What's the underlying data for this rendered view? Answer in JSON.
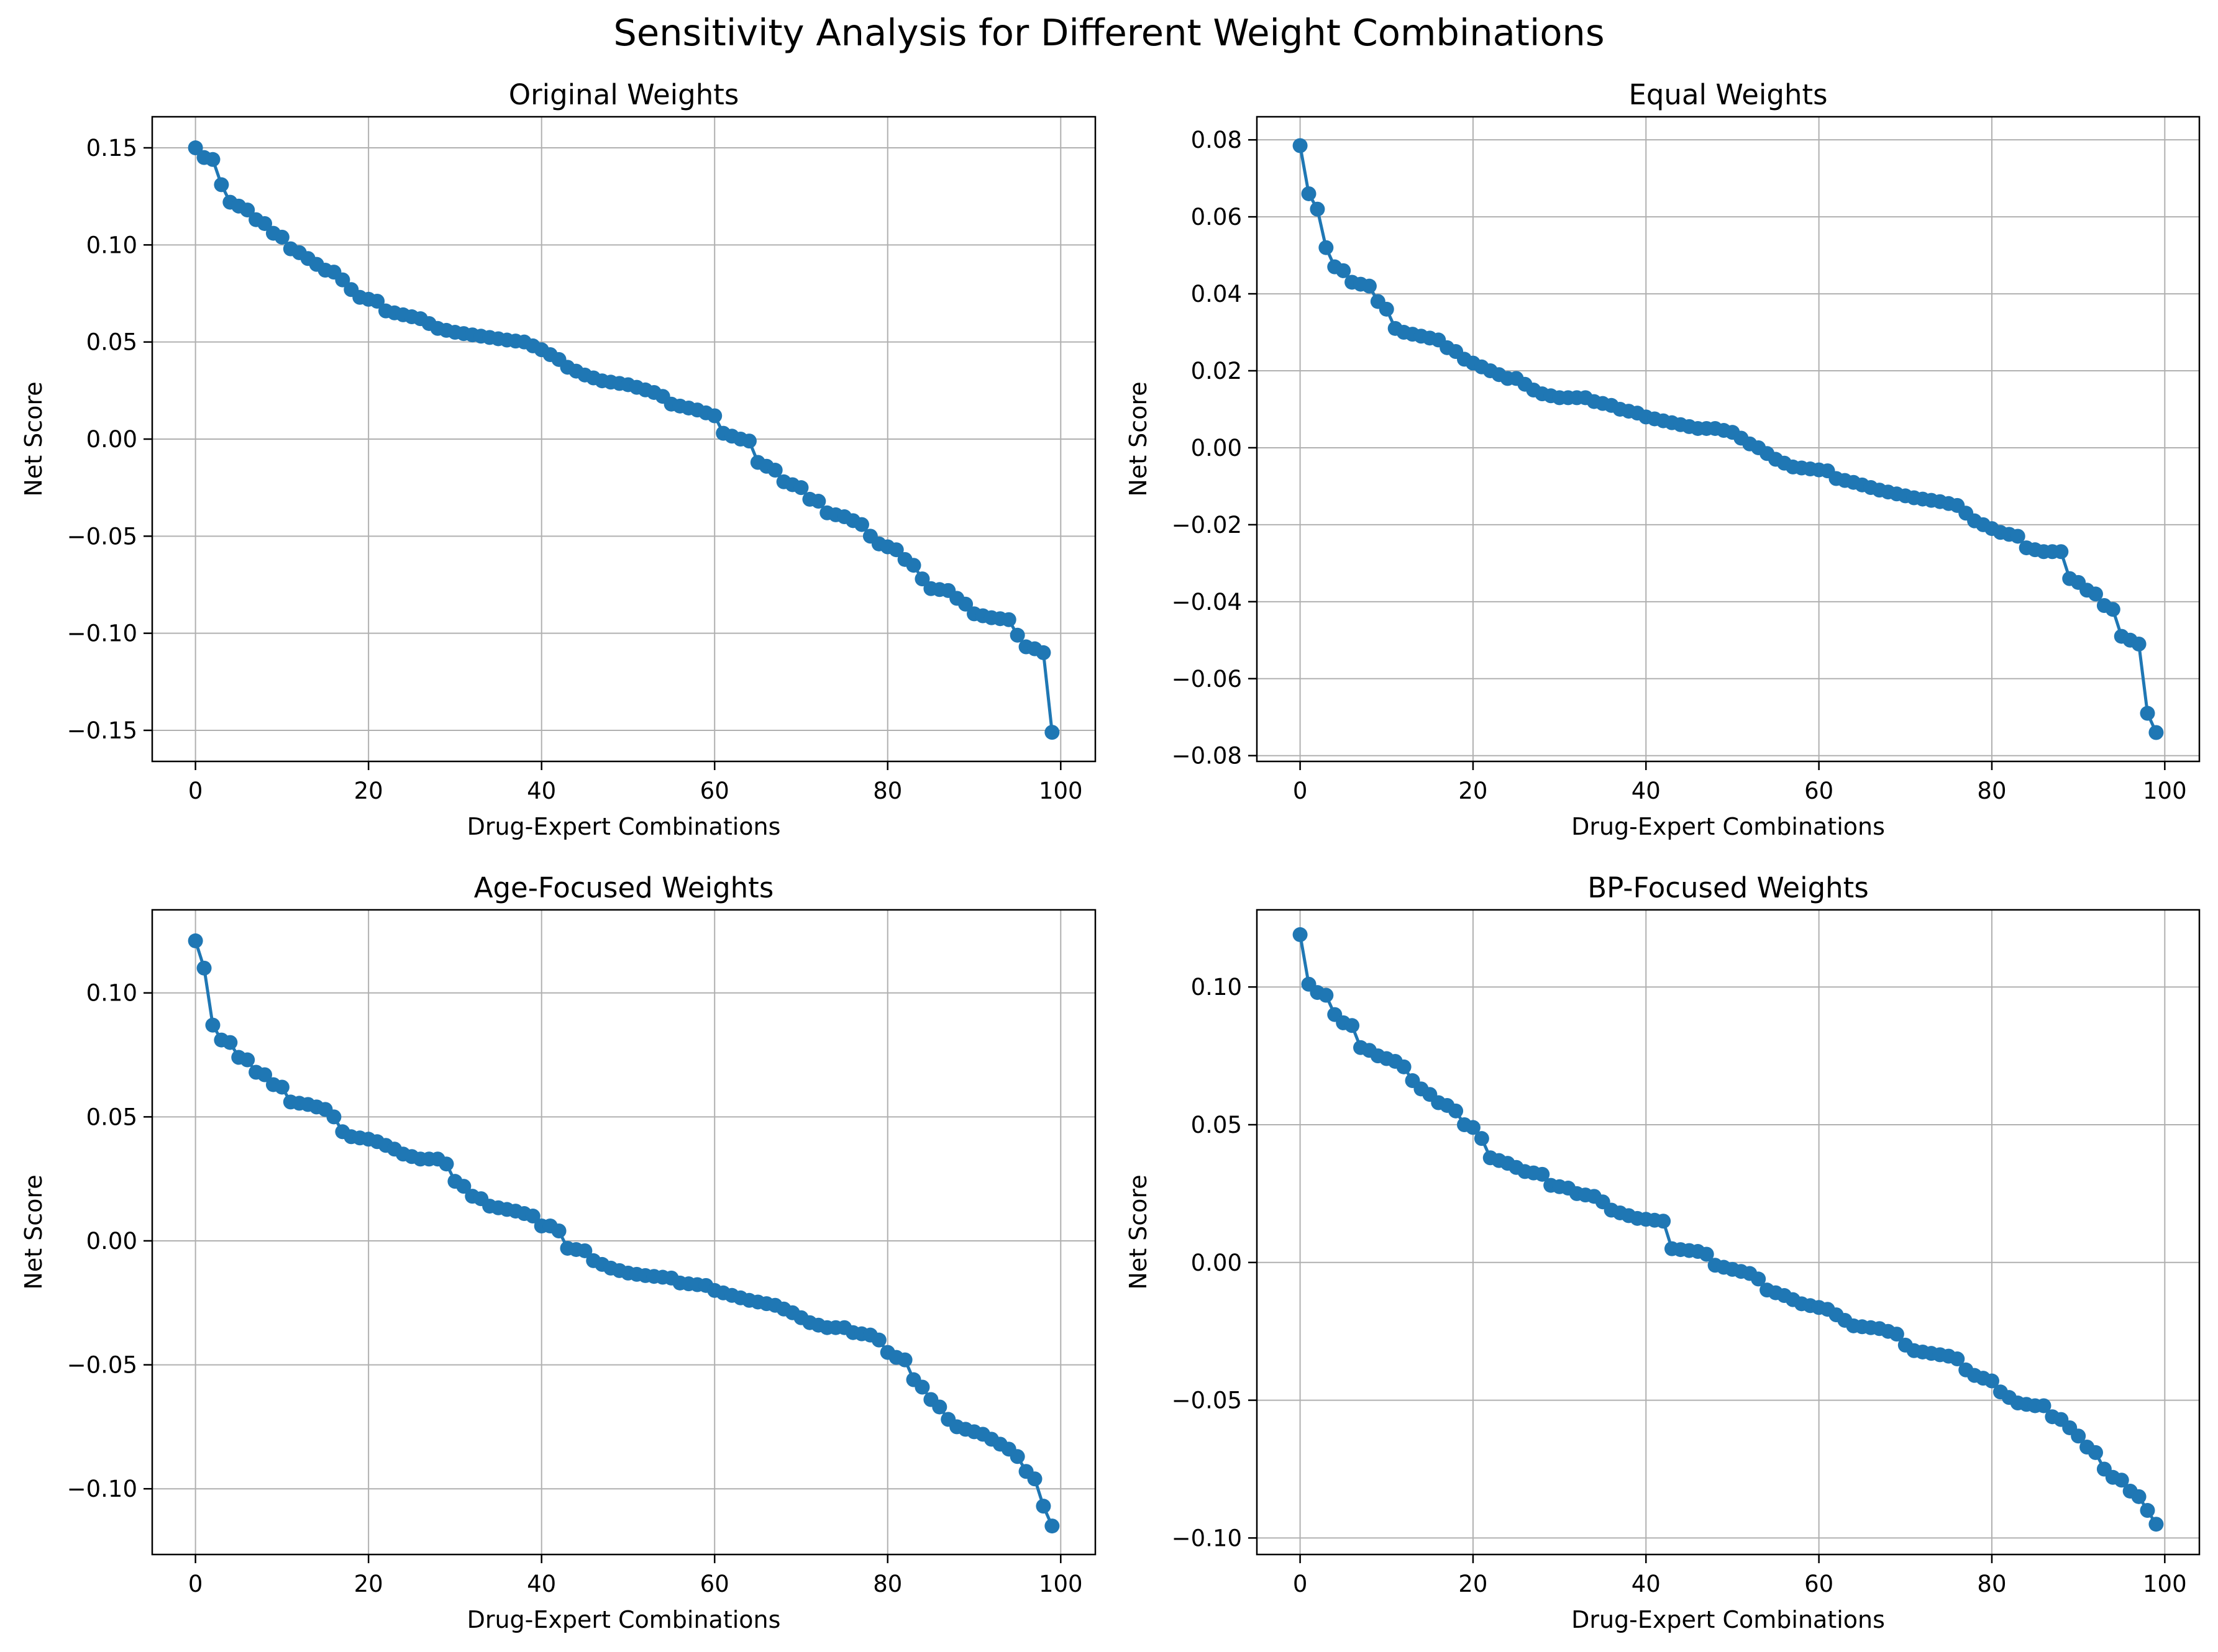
{
  "figure": {
    "suptitle": "Sensitivity Analysis for Different Weight Combinations"
  },
  "chart_data": [
    {
      "type": "line",
      "title": "Original Weights",
      "xlabel": "Drug-Expert Combinations",
      "ylabel": "Net Score",
      "xlim": [
        -5,
        104
      ],
      "ylim": [
        -0.166,
        0.166
      ],
      "xticks": [
        0,
        20,
        40,
        60,
        80,
        100
      ],
      "yticks": [
        -0.15,
        -0.1,
        -0.05,
        0.0,
        0.05,
        0.1,
        0.15
      ],
      "ytick_labels": [
        "−0.15",
        "−0.10",
        "−0.05",
        "0.00",
        "0.05",
        "0.10",
        "0.15"
      ],
      "grid": true,
      "color": "#1f77b4",
      "marker": "circle",
      "anchors": [
        [
          0,
          0.15
        ],
        [
          1,
          0.145
        ],
        [
          2,
          0.144
        ],
        [
          3,
          0.131
        ],
        [
          4,
          0.122
        ],
        [
          5,
          0.12
        ],
        [
          6,
          0.118
        ],
        [
          7,
          0.113
        ],
        [
          8,
          0.111
        ],
        [
          9,
          0.106
        ],
        [
          10,
          0.104
        ],
        [
          11,
          0.098
        ],
        [
          12,
          0.096
        ],
        [
          13,
          0.093
        ],
        [
          14,
          0.09
        ],
        [
          15,
          0.087
        ],
        [
          16,
          0.086
        ],
        [
          17,
          0.082
        ],
        [
          18,
          0.077
        ],
        [
          19,
          0.073
        ],
        [
          20,
          0.072
        ],
        [
          21,
          0.071
        ],
        [
          22,
          0.066
        ],
        [
          24,
          0.064
        ],
        [
          26,
          0.062
        ],
        [
          28,
          0.057
        ],
        [
          30,
          0.055
        ],
        [
          33,
          0.053
        ],
        [
          36,
          0.051
        ],
        [
          38,
          0.05
        ],
        [
          40,
          0.046
        ],
        [
          42,
          0.041
        ],
        [
          43,
          0.037
        ],
        [
          45,
          0.033
        ],
        [
          47,
          0.03
        ],
        [
          50,
          0.028
        ],
        [
          53,
          0.024
        ],
        [
          54,
          0.022
        ],
        [
          55,
          0.018
        ],
        [
          58,
          0.015
        ],
        [
          60,
          0.012
        ],
        [
          61,
          0.003
        ],
        [
          63,
          0.0
        ],
        [
          64,
          -0.001
        ],
        [
          65,
          -0.012
        ],
        [
          67,
          -0.016
        ],
        [
          68,
          -0.022
        ],
        [
          70,
          -0.025
        ],
        [
          71,
          -0.031
        ],
        [
          72,
          -0.032
        ],
        [
          73,
          -0.038
        ],
        [
          75,
          -0.04
        ],
        [
          77,
          -0.044
        ],
        [
          78,
          -0.05
        ],
        [
          79,
          -0.054
        ],
        [
          81,
          -0.057
        ],
        [
          82,
          -0.062
        ],
        [
          83,
          -0.065
        ],
        [
          84,
          -0.072
        ],
        [
          85,
          -0.077
        ],
        [
          87,
          -0.078
        ],
        [
          88,
          -0.082
        ],
        [
          89,
          -0.085
        ],
        [
          90,
          -0.09
        ],
        [
          92,
          -0.092
        ],
        [
          94,
          -0.093
        ],
        [
          95,
          -0.101
        ],
        [
          96,
          -0.107
        ],
        [
          97,
          -0.108
        ],
        [
          98,
          -0.11
        ],
        [
          99,
          -0.151
        ]
      ]
    },
    {
      "type": "line",
      "title": "Equal Weights",
      "xlabel": "Drug-Expert Combinations",
      "ylabel": "Net Score",
      "xlim": [
        -5,
        104
      ],
      "ylim": [
        -0.0815,
        0.086
      ],
      "xticks": [
        0,
        20,
        40,
        60,
        80,
        100
      ],
      "yticks": [
        -0.08,
        -0.06,
        -0.04,
        -0.02,
        0.0,
        0.02,
        0.04,
        0.06,
        0.08
      ],
      "ytick_labels": [
        "−0.08",
        "−0.06",
        "−0.04",
        "−0.02",
        "0.00",
        "0.02",
        "0.04",
        "0.06",
        "0.08"
      ],
      "grid": true,
      "color": "#1f77b4",
      "marker": "circle",
      "anchors": [
        [
          0,
          0.0785
        ],
        [
          1,
          0.066
        ],
        [
          2,
          0.062
        ],
        [
          3,
          0.052
        ],
        [
          4,
          0.047
        ],
        [
          5,
          0.046
        ],
        [
          6,
          0.043
        ],
        [
          8,
          0.042
        ],
        [
          9,
          0.038
        ],
        [
          10,
          0.036
        ],
        [
          11,
          0.031
        ],
        [
          12,
          0.03
        ],
        [
          14,
          0.029
        ],
        [
          16,
          0.028
        ],
        [
          17,
          0.026
        ],
        [
          18,
          0.025
        ],
        [
          19,
          0.023
        ],
        [
          20,
          0.022
        ],
        [
          21,
          0.021
        ],
        [
          22,
          0.02
        ],
        [
          24,
          0.018
        ],
        [
          25,
          0.018
        ],
        [
          27,
          0.015
        ],
        [
          28,
          0.014
        ],
        [
          30,
          0.013
        ],
        [
          33,
          0.013
        ],
        [
          34,
          0.012
        ],
        [
          36,
          0.011
        ],
        [
          37,
          0.01
        ],
        [
          39,
          0.009
        ],
        [
          40,
          0.008
        ],
        [
          42,
          0.007
        ],
        [
          44,
          0.006
        ],
        [
          46,
          0.005
        ],
        [
          48,
          0.005
        ],
        [
          50,
          0.004
        ],
        [
          52,
          0.001
        ],
        [
          53,
          0.0
        ],
        [
          55,
          -0.003
        ],
        [
          57,
          -0.005
        ],
        [
          61,
          -0.006
        ],
        [
          62,
          -0.008
        ],
        [
          64,
          -0.009
        ],
        [
          67,
          -0.011
        ],
        [
          69,
          -0.012
        ],
        [
          71,
          -0.013
        ],
        [
          74,
          -0.014
        ],
        [
          76,
          -0.015
        ],
        [
          77,
          -0.017
        ],
        [
          78,
          -0.019
        ],
        [
          80,
          -0.021
        ],
        [
          81,
          -0.022
        ],
        [
          83,
          -0.023
        ],
        [
          84,
          -0.026
        ],
        [
          86,
          -0.027
        ],
        [
          88,
          -0.027
        ],
        [
          89,
          -0.034
        ],
        [
          90,
          -0.035
        ],
        [
          91,
          -0.037
        ],
        [
          92,
          -0.038
        ],
        [
          93,
          -0.041
        ],
        [
          94,
          -0.042
        ],
        [
          95,
          -0.049
        ],
        [
          96,
          -0.05
        ],
        [
          97,
          -0.051
        ],
        [
          98,
          -0.069
        ],
        [
          99,
          -0.074
        ]
      ]
    },
    {
      "type": "line",
      "title": "Age-Focused Weights",
      "xlabel": "Drug-Expert Combinations",
      "ylabel": "Net Score",
      "xlim": [
        -5,
        104
      ],
      "ylim": [
        -0.1265,
        0.1335
      ],
      "xticks": [
        0,
        20,
        40,
        60,
        80,
        100
      ],
      "yticks": [
        -0.1,
        -0.05,
        0.0,
        0.05,
        0.1
      ],
      "ytick_labels": [
        "−0.10",
        "−0.05",
        "0.00",
        "0.05",
        "0.10"
      ],
      "grid": true,
      "color": "#1f77b4",
      "marker": "circle",
      "anchors": [
        [
          0,
          0.121
        ],
        [
          1,
          0.11
        ],
        [
          2,
          0.087
        ],
        [
          3,
          0.081
        ],
        [
          4,
          0.08
        ],
        [
          5,
          0.074
        ],
        [
          6,
          0.073
        ],
        [
          7,
          0.068
        ],
        [
          8,
          0.067
        ],
        [
          9,
          0.063
        ],
        [
          10,
          0.062
        ],
        [
          11,
          0.056
        ],
        [
          13,
          0.055
        ],
        [
          15,
          0.053
        ],
        [
          16,
          0.05
        ],
        [
          17,
          0.044
        ],
        [
          18,
          0.042
        ],
        [
          20,
          0.041
        ],
        [
          21,
          0.04
        ],
        [
          23,
          0.037
        ],
        [
          24,
          0.035
        ],
        [
          26,
          0.033
        ],
        [
          28,
          0.033
        ],
        [
          29,
          0.031
        ],
        [
          30,
          0.024
        ],
        [
          31,
          0.022
        ],
        [
          32,
          0.018
        ],
        [
          33,
          0.017
        ],
        [
          34,
          0.014
        ],
        [
          37,
          0.012
        ],
        [
          39,
          0.01
        ],
        [
          40,
          0.006
        ],
        [
          41,
          0.006
        ],
        [
          42,
          0.004
        ],
        [
          43,
          -0.003
        ],
        [
          45,
          -0.004
        ],
        [
          46,
          -0.008
        ],
        [
          48,
          -0.011
        ],
        [
          50,
          -0.013
        ],
        [
          52,
          -0.014
        ],
        [
          55,
          -0.015
        ],
        [
          56,
          -0.017
        ],
        [
          59,
          -0.018
        ],
        [
          60,
          -0.02
        ],
        [
          62,
          -0.022
        ],
        [
          64,
          -0.024
        ],
        [
          67,
          -0.026
        ],
        [
          69,
          -0.029
        ],
        [
          71,
          -0.033
        ],
        [
          73,
          -0.035
        ],
        [
          75,
          -0.035
        ],
        [
          76,
          -0.037
        ],
        [
          78,
          -0.038
        ],
        [
          79,
          -0.04
        ],
        [
          80,
          -0.045
        ],
        [
          81,
          -0.047
        ],
        [
          82,
          -0.048
        ],
        [
          83,
          -0.056
        ],
        [
          84,
          -0.059
        ],
        [
          85,
          -0.064
        ],
        [
          86,
          -0.067
        ],
        [
          87,
          -0.072
        ],
        [
          88,
          -0.075
        ],
        [
          90,
          -0.077
        ],
        [
          91,
          -0.078
        ],
        [
          92,
          -0.08
        ],
        [
          94,
          -0.084
        ],
        [
          95,
          -0.087
        ],
        [
          96,
          -0.093
        ],
        [
          97,
          -0.096
        ],
        [
          98,
          -0.107
        ],
        [
          99,
          -0.115
        ]
      ]
    },
    {
      "type": "line",
      "title": "BP-Focused Weights",
      "xlabel": "Drug-Expert Combinations",
      "ylabel": "Net Score",
      "xlim": [
        -5,
        104
      ],
      "ylim": [
        -0.106,
        0.128
      ],
      "xticks": [
        0,
        20,
        40,
        60,
        80,
        100
      ],
      "yticks": [
        -0.1,
        -0.05,
        0.0,
        0.05,
        0.1
      ],
      "ytick_labels": [
        "−0.10",
        "−0.05",
        "0.00",
        "0.05",
        "0.10"
      ],
      "grid": true,
      "color": "#1f77b4",
      "marker": "circle",
      "anchors": [
        [
          0,
          0.119
        ],
        [
          1,
          0.101
        ],
        [
          2,
          0.098
        ],
        [
          3,
          0.097
        ],
        [
          4,
          0.09
        ],
        [
          5,
          0.087
        ],
        [
          6,
          0.086
        ],
        [
          7,
          0.078
        ],
        [
          8,
          0.077
        ],
        [
          9,
          0.075
        ],
        [
          10,
          0.074
        ],
        [
          11,
          0.073
        ],
        [
          12,
          0.071
        ],
        [
          13,
          0.066
        ],
        [
          14,
          0.063
        ],
        [
          15,
          0.061
        ],
        [
          16,
          0.058
        ],
        [
          17,
          0.057
        ],
        [
          18,
          0.055
        ],
        [
          19,
          0.05
        ],
        [
          20,
          0.049
        ],
        [
          21,
          0.045
        ],
        [
          22,
          0.038
        ],
        [
          24,
          0.036
        ],
        [
          26,
          0.033
        ],
        [
          28,
          0.032
        ],
        [
          29,
          0.028
        ],
        [
          31,
          0.027
        ],
        [
          32,
          0.025
        ],
        [
          34,
          0.024
        ],
        [
          35,
          0.022
        ],
        [
          36,
          0.019
        ],
        [
          37,
          0.018
        ],
        [
          39,
          0.016
        ],
        [
          42,
          0.015
        ],
        [
          43,
          0.005
        ],
        [
          46,
          0.004
        ],
        [
          47,
          0.003
        ],
        [
          48,
          -0.001
        ],
        [
          52,
          -0.004
        ],
        [
          53,
          -0.006
        ],
        [
          54,
          -0.01
        ],
        [
          56,
          -0.012
        ],
        [
          58,
          -0.015
        ],
        [
          61,
          -0.017
        ],
        [
          62,
          -0.019
        ],
        [
          63,
          -0.021
        ],
        [
          64,
          -0.023
        ],
        [
          67,
          -0.024
        ],
        [
          69,
          -0.026
        ],
        [
          70,
          -0.03
        ],
        [
          71,
          -0.032
        ],
        [
          73,
          -0.033
        ],
        [
          75,
          -0.034
        ],
        [
          76,
          -0.035
        ],
        [
          77,
          -0.039
        ],
        [
          78,
          -0.041
        ],
        [
          80,
          -0.043
        ],
        [
          81,
          -0.047
        ],
        [
          82,
          -0.049
        ],
        [
          83,
          -0.051
        ],
        [
          85,
          -0.052
        ],
        [
          86,
          -0.052
        ],
        [
          87,
          -0.056
        ],
        [
          88,
          -0.057
        ],
        [
          89,
          -0.06
        ],
        [
          90,
          -0.063
        ],
        [
          91,
          -0.067
        ],
        [
          92,
          -0.069
        ],
        [
          93,
          -0.075
        ],
        [
          94,
          -0.078
        ],
        [
          95,
          -0.079
        ],
        [
          96,
          -0.083
        ],
        [
          97,
          -0.085
        ],
        [
          98,
          -0.09
        ],
        [
          99,
          -0.095
        ]
      ]
    }
  ]
}
